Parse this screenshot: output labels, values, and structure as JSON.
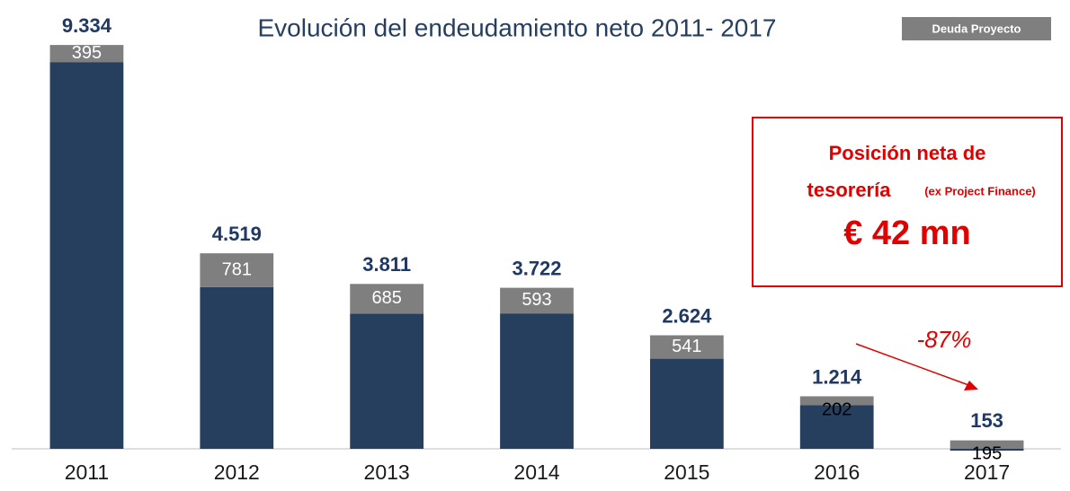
{
  "chart_data": {
    "type": "bar",
    "title": "Evolución del endeudamiento neto 2011- 2017",
    "categories": [
      "2011",
      "2012",
      "2013",
      "2014",
      "2015",
      "2016",
      "2017"
    ],
    "series": [
      {
        "color": "#263f5e",
        "values": [
          8939,
          3738,
          3126,
          3129,
          2083,
          1012,
          -42
        ]
      },
      {
        "name": "Deuda Proyecto",
        "color": "#7f7f7f",
        "values": [
          395,
          781,
          685,
          593,
          541,
          202,
          195
        ]
      }
    ],
    "totals": {
      "values": [
        9334,
        4519,
        3811,
        3722,
        2624,
        1214,
        153
      ],
      "value_labels": [
        "9.334",
        "4.519",
        "3.811",
        "3.722",
        "2.624",
        "1.214",
        "153"
      ]
    },
    "ylim": [
      0,
      10000
    ],
    "callout": {
      "line1": "Posición neta de",
      "line2": "tesorería",
      "line2_note": "(ex Project Finance)",
      "amount": "€ 42 mn"
    },
    "change_label": "-87%"
  }
}
